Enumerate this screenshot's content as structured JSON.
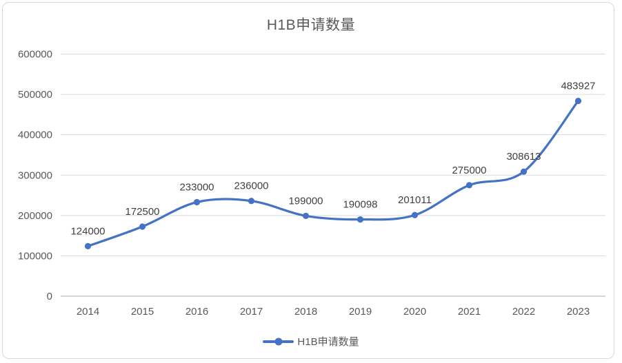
{
  "chart_data": {
    "type": "line",
    "title": "H1B申请数量",
    "categories": [
      "2014",
      "2015",
      "2016",
      "2017",
      "2018",
      "2019",
      "2020",
      "2021",
      "2022",
      "2023"
    ],
    "series": [
      {
        "name": "H1B申请数量",
        "values": [
          124000,
          172500,
          233000,
          236000,
          199000,
          190098,
          201011,
          275000,
          308613,
          483927
        ]
      }
    ],
    "data_labels": [
      "124000",
      "172500",
      "233000",
      "236000",
      "199000",
      "190098",
      "201011",
      "275000",
      "308613",
      "483927"
    ],
    "yticks": [
      0,
      100000,
      200000,
      300000,
      400000,
      500000,
      600000
    ],
    "ytick_labels": [
      "0",
      "100000",
      "200000",
      "300000",
      "400000",
      "500000",
      "600000"
    ],
    "ylim": [
      0,
      600000
    ],
    "xlabel": "",
    "ylabel": "",
    "grid": "horizontal",
    "smoothed_line": true,
    "markers": true,
    "legend_position": "bottom-center",
    "colors": {
      "series": "#4472C4",
      "gridline": "#D9D9D9",
      "axis_line": "#BFBFBF",
      "title_text": "#595959",
      "axis_text": "#595959",
      "data_label_text": "#404040",
      "background": "#FFFFFF",
      "frame_border": "#D9D9D9"
    }
  }
}
